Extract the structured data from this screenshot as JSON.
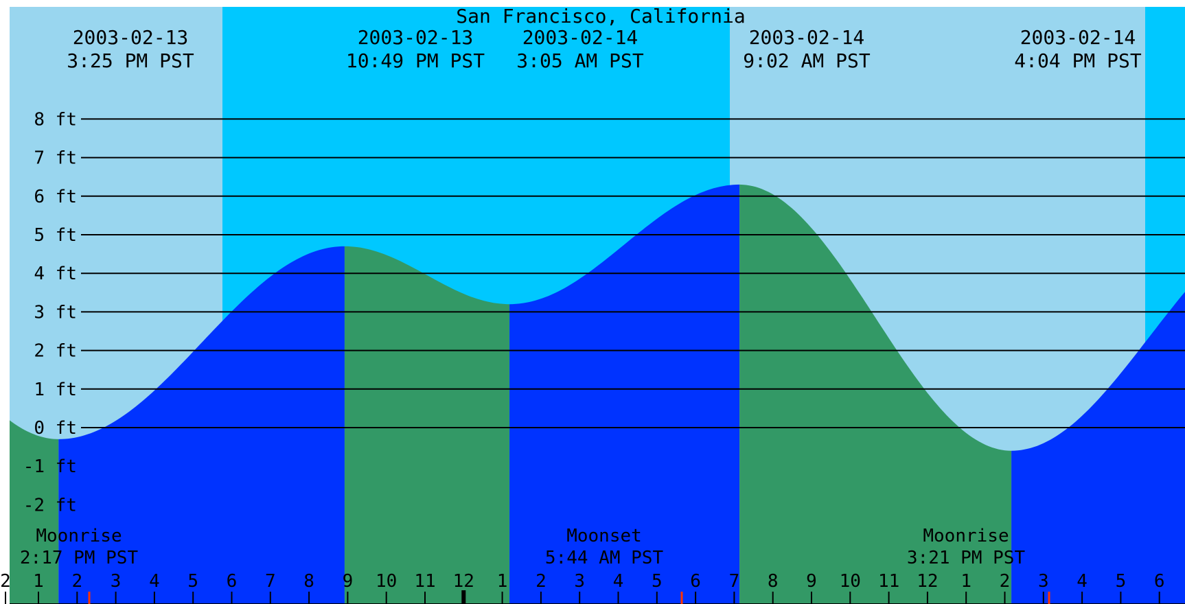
{
  "chart_data": {
    "type": "area",
    "title": "San Francisco, California",
    "ylim": [
      -2.7,
      11
    ],
    "y_ticks": [
      -2,
      -1,
      0,
      1,
      2,
      3,
      4,
      5,
      6,
      7,
      8
    ],
    "y_tick_suffix": " ft",
    "hour_tick_labels": [
      "2",
      "1",
      "2",
      "3",
      "4",
      "5",
      "6",
      "7",
      "8",
      "9",
      "10",
      "11",
      "12",
      "1",
      "2",
      "3",
      "4",
      "5",
      "6",
      "7",
      "8",
      "9",
      "10",
      "11",
      "12",
      "1",
      "2",
      "3",
      "4",
      "5",
      "6"
    ],
    "colors": {
      "day_bg": "#99d6ef",
      "night_bg": "#00c8ff",
      "rising": "#0033ff",
      "falling": "#339966",
      "axis": "#000000",
      "marker_red": "#ff3300"
    },
    "extrema": [
      {
        "date": "2003-02-13",
        "time": "3:25 PM PST",
        "height_ft": -0.3
      },
      {
        "date": "2003-02-13",
        "time": "10:49 PM PST",
        "height_ft": 4.7
      },
      {
        "date": "2003-02-14",
        "time": "3:05 AM PST",
        "height_ft": 3.2
      },
      {
        "date": "2003-02-14",
        "time": "9:02 AM PST",
        "height_ft": 6.3
      },
      {
        "date": "2003-02-14",
        "time": "4:04 PM PST",
        "height_ft": -0.6
      }
    ],
    "moon_events": [
      {
        "label": "Moonrise",
        "time": "2:17 PM PST"
      },
      {
        "label": "Moonset",
        "time": "5:44 AM PST"
      },
      {
        "label": "Moonrise",
        "time": "3:21 PM PST"
      }
    ]
  }
}
